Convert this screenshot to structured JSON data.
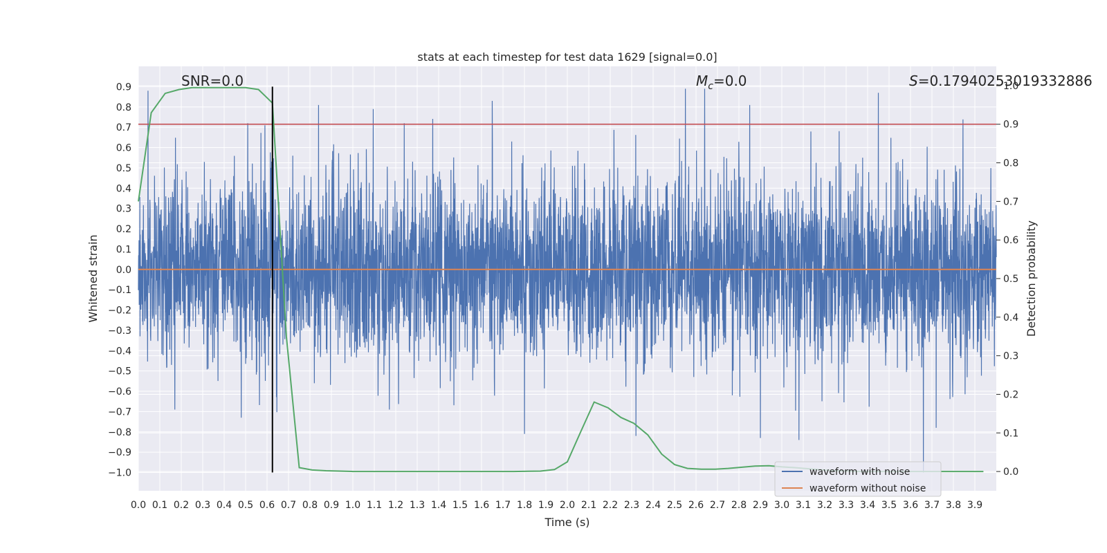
{
  "chart_data": {
    "type": "line",
    "title": "stats at each timestep for test data 1629 [signal=0.0]",
    "xlabel": "Time (s)",
    "ylabel": "Whitened strain",
    "ylabel_right": "Detection probability",
    "xlim": [
      0.0,
      4.0
    ],
    "ylim": [
      -1.09,
      1.0
    ],
    "ylim_right": [
      -0.05,
      1.05
    ],
    "x_ticks": [
      "0.0",
      "0.1",
      "0.2",
      "0.3",
      "0.4",
      "0.5",
      "0.6",
      "0.7",
      "0.8",
      "0.9",
      "1.0",
      "1.1",
      "1.2",
      "1.3",
      "1.4",
      "1.5",
      "1.6",
      "1.7",
      "1.8",
      "1.9",
      "2.0",
      "2.1",
      "2.2",
      "2.3",
      "2.4",
      "2.5",
      "2.6",
      "2.7",
      "2.8",
      "2.9",
      "3.0",
      "3.1",
      "3.2",
      "3.3",
      "3.4",
      "3.5",
      "3.6",
      "3.7",
      "3.8",
      "3.9"
    ],
    "y_ticks": [
      "0.9",
      "0.8",
      "0.7",
      "0.6",
      "0.5",
      "0.4",
      "0.3",
      "0.2",
      "0.1",
      "0.0",
      "−0.1",
      "−0.2",
      "−0.3",
      "−0.4",
      "−0.5",
      "−0.6",
      "−0.7",
      "−0.8",
      "−0.9",
      "−1.0"
    ],
    "y_ticks_right": [
      "1.0",
      "0.9",
      "0.8",
      "0.7",
      "0.6",
      "0.5",
      "0.4",
      "0.3",
      "0.2",
      "0.1",
      "0.0"
    ],
    "annotations": {
      "snr": "SNR=0.0",
      "mc_symbol": "M",
      "mc_sub": "c",
      "mc_value": "=0.0",
      "s_symbol": "S",
      "s_value": "=0.17940253019332886"
    },
    "threshold": {
      "value": 0.9,
      "axis": "right",
      "color": "#c44e52"
    },
    "marker_time": 0.625,
    "series": [
      {
        "name": "waveform with noise",
        "color": "#4c72b0",
        "kind": "noise",
        "amplitude_range": [
          -1.0,
          0.9
        ],
        "std_estimate": 0.22,
        "peaks": [
          {
            "x": 0.045,
            "y": 0.88
          },
          {
            "x": 0.51,
            "y": 0.72
          },
          {
            "x": 0.59,
            "y": 0.71
          },
          {
            "x": 0.84,
            "y": 0.81
          },
          {
            "x": 1.24,
            "y": 0.72
          },
          {
            "x": 1.65,
            "y": 0.83
          },
          {
            "x": 2.55,
            "y": 0.89
          },
          {
            "x": 2.64,
            "y": 0.89
          },
          {
            "x": 2.85,
            "y": 0.81
          },
          {
            "x": 3.08,
            "y": 0.78
          },
          {
            "x": 3.45,
            "y": 0.87
          },
          {
            "x": 0.17,
            "y": -0.69
          },
          {
            "x": 0.48,
            "y": -0.73
          },
          {
            "x": 1.17,
            "y": -0.69
          },
          {
            "x": 1.8,
            "y": -0.81
          },
          {
            "x": 2.32,
            "y": -0.82
          },
          {
            "x": 2.9,
            "y": -0.83
          },
          {
            "x": 3.08,
            "y": -0.84
          },
          {
            "x": 3.66,
            "y": -1.0
          },
          {
            "x": 3.72,
            "y": -0.78
          }
        ]
      },
      {
        "name": "waveform without noise",
        "color": "#dd8452",
        "x": [
          0.0,
          4.0
        ],
        "y": [
          0.0,
          0.0
        ]
      },
      {
        "name": "detection probability",
        "color": "#55a868",
        "axis": "right",
        "in_legend": false,
        "x": [
          0.0,
          0.06,
          0.125,
          0.19,
          0.25,
          0.31,
          0.375,
          0.44,
          0.5,
          0.56,
          0.625,
          0.69,
          0.75,
          0.81,
          0.875,
          0.94,
          1.0,
          1.25,
          1.5,
          1.75,
          1.875,
          1.94,
          2.0,
          2.06,
          2.125,
          2.19,
          2.25,
          2.31,
          2.375,
          2.44,
          2.5,
          2.56,
          2.625,
          2.69,
          2.75,
          2.81,
          2.875,
          2.94,
          3.0,
          3.06,
          3.125,
          3.19,
          3.25,
          3.31,
          3.375,
          3.44,
          3.5,
          3.56,
          3.625,
          3.69,
          3.75,
          3.81,
          3.875,
          3.94
        ],
        "y": [
          0.7,
          0.93,
          0.98,
          0.99,
          0.995,
          0.995,
          0.995,
          0.995,
          0.995,
          0.99,
          0.955,
          0.35,
          0.01,
          0.004,
          0.002,
          0.001,
          0.0,
          0.0,
          0.0,
          0.0,
          0.001,
          0.005,
          0.025,
          0.1,
          0.18,
          0.165,
          0.14,
          0.125,
          0.095,
          0.045,
          0.018,
          0.008,
          0.006,
          0.006,
          0.008,
          0.011,
          0.014,
          0.015,
          0.012,
          0.01,
          0.007,
          0.004,
          0.002,
          0.001,
          0.0,
          0.0,
          0.0,
          0.0,
          0.0,
          0.0,
          0.0,
          0.0,
          0.0,
          0.0
        ]
      }
    ],
    "legend": {
      "location": "lower right",
      "entries": [
        "waveform with noise",
        "waveform without noise"
      ]
    }
  },
  "colors": {
    "axes_bg": "#eaeaf2",
    "grid": "#ffffff",
    "text": "#262626",
    "marker_line": "#000000"
  }
}
